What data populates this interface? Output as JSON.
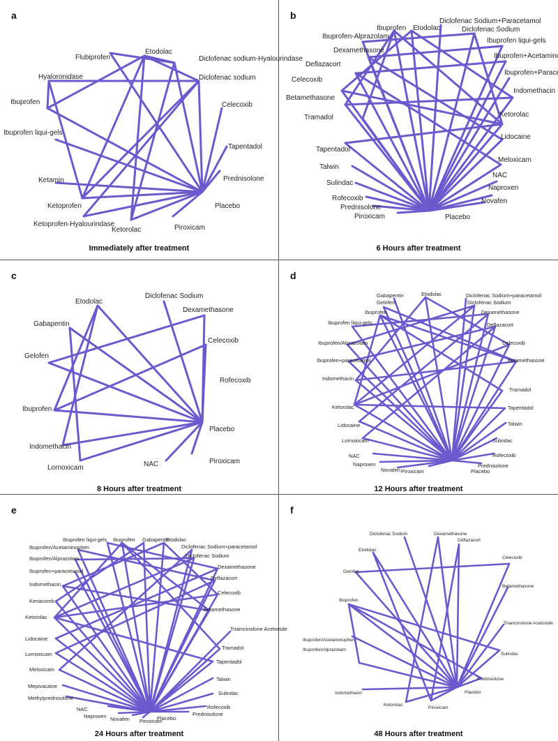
{
  "colors": {
    "edge": "#6a5acd",
    "divider": "#555555"
  },
  "panels": [
    {
      "letter": "a",
      "caption": "Immediately after treatment",
      "nodes": [
        "Flubiprofen",
        "Etodolac",
        "Diclofenac sodium-Hyalourindase",
        "Hyaloronidase",
        "Diclofenac sodium",
        "Ibuprofen",
        "Celecoxib",
        "Ibuprofen liqui-gels",
        "Tapentadol",
        "Ketamin",
        "Prednisolone",
        "Ketoprofen",
        "Placebo",
        "Ketoprofen-Hyalourindase",
        "Ketorolac",
        "Piroxicam"
      ],
      "edges": [
        [
          0,
          2
        ],
        [
          1,
          2
        ],
        [
          1,
          4
        ],
        [
          2,
          14
        ],
        [
          2,
          12
        ],
        [
          3,
          4
        ],
        [
          3,
          11
        ],
        [
          3,
          5
        ],
        [
          4,
          11
        ],
        [
          4,
          12
        ],
        [
          4,
          13
        ],
        [
          5,
          12
        ],
        [
          6,
          12
        ],
        [
          7,
          12
        ],
        [
          8,
          12
        ],
        [
          9,
          12
        ],
        [
          10,
          12
        ],
        [
          11,
          12
        ],
        [
          11,
          1
        ],
        [
          13,
          12
        ],
        [
          14,
          12
        ],
        [
          15,
          12
        ],
        [
          1,
          14
        ],
        [
          0,
          12
        ],
        [
          5,
          1
        ]
      ]
    },
    {
      "letter": "b",
      "caption": "6 Hours after treatment",
      "nodes": [
        "Ibuprofen",
        "Etodolac",
        "Diclofenac Sodium+Paracetamol",
        "Ibuprofen-Alprazolam",
        "Diclofenac Sodium",
        "Dexamethasone",
        "Ibuprofen liqui-gels",
        "Deflazacort",
        "Ibuprofen+Acetaminofen",
        "Celecoxib",
        "Ibuprofen+Paracetamol",
        "Betamethasone",
        "Indomethacin",
        "Tramadol",
        "Ketorolac",
        "Tapentadol",
        "Lidocaine",
        "Talwin",
        "Meloxicam",
        "Sulindac",
        "NAC",
        "Rofecoxib",
        "Naproxen",
        "Prednisolone",
        "Novafen",
        "Piroxicam",
        "Placebo"
      ],
      "edges": [
        [
          0,
          26
        ],
        [
          1,
          26
        ],
        [
          2,
          26
        ],
        [
          3,
          26
        ],
        [
          4,
          26
        ],
        [
          5,
          26
        ],
        [
          6,
          26
        ],
        [
          7,
          26
        ],
        [
          8,
          26
        ],
        [
          9,
          26
        ],
        [
          10,
          26
        ],
        [
          11,
          26
        ],
        [
          12,
          26
        ],
        [
          13,
          26
        ],
        [
          14,
          26
        ],
        [
          15,
          26
        ],
        [
          16,
          26
        ],
        [
          17,
          26
        ],
        [
          18,
          26
        ],
        [
          19,
          26
        ],
        [
          20,
          26
        ],
        [
          21,
          26
        ],
        [
          22,
          26
        ],
        [
          23,
          26
        ],
        [
          24,
          26
        ],
        [
          25,
          26
        ],
        [
          0,
          14
        ],
        [
          1,
          12
        ],
        [
          4,
          14
        ],
        [
          0,
          11
        ],
        [
          12,
          11
        ],
        [
          3,
          4
        ],
        [
          5,
          16
        ],
        [
          7,
          18
        ],
        [
          9,
          14
        ],
        [
          1,
          9
        ],
        [
          0,
          13
        ],
        [
          14,
          15
        ],
        [
          6,
          5
        ],
        [
          8,
          7
        ]
      ]
    },
    {
      "letter": "c",
      "caption": "8 Hours after treatment",
      "nodes": [
        "Etodolac",
        "Diclofenac Sodium",
        "Dexamethasone",
        "Gabapentin",
        "Celecoxib",
        "Gelofen",
        "Rofecoxib",
        "Ibuprofen",
        "Placebo",
        "Indomethacin",
        "Piroxicam",
        "Lornoxicam",
        "NAC"
      ],
      "edges": [
        [
          0,
          7
        ],
        [
          0,
          8
        ],
        [
          1,
          8
        ],
        [
          2,
          8
        ],
        [
          3,
          8
        ],
        [
          4,
          8
        ],
        [
          5,
          8
        ],
        [
          6,
          8
        ],
        [
          7,
          8
        ],
        [
          9,
          8
        ],
        [
          10,
          8
        ],
        [
          11,
          8
        ],
        [
          12,
          8
        ],
        [
          5,
          2
        ],
        [
          7,
          4
        ],
        [
          3,
          11
        ],
        [
          0,
          9
        ]
      ]
    },
    {
      "letter": "d",
      "caption": "12 Hours after treatment",
      "nodes": [
        "Gabapentin",
        "Etodolac",
        "Diclofenac Sodium+paracetamol",
        "Gelofen",
        "Diclofenac Sodium",
        "Ibuprofen",
        "Dexamethasone",
        "Ibuprofen liqui-gels",
        "Deflazacort",
        "Ibuprofen/Alprazolam",
        "Celecoxib",
        "Ibuprofen+paracetamol",
        "Betamethasone",
        "Indomethacin",
        "Tramadol",
        "Ketorolac",
        "Tapentadol",
        "Lidocaine",
        "Talwin",
        "Lornoxicam",
        "Sulindac",
        "NAC",
        "Rofecoxib",
        "Naproxen",
        "Prednisolone",
        "Novafen",
        "Piroxicam",
        "Placebo"
      ],
      "edges": [
        [
          0,
          27
        ],
        [
          1,
          27
        ],
        [
          2,
          27
        ],
        [
          3,
          27
        ],
        [
          4,
          27
        ],
        [
          5,
          27
        ],
        [
          6,
          27
        ],
        [
          7,
          27
        ],
        [
          8,
          27
        ],
        [
          9,
          27
        ],
        [
          10,
          27
        ],
        [
          11,
          27
        ],
        [
          12,
          27
        ],
        [
          13,
          27
        ],
        [
          14,
          27
        ],
        [
          15,
          27
        ],
        [
          16,
          27
        ],
        [
          17,
          27
        ],
        [
          18,
          27
        ],
        [
          19,
          27
        ],
        [
          20,
          27
        ],
        [
          21,
          27
        ],
        [
          22,
          27
        ],
        [
          23,
          27
        ],
        [
          24,
          27
        ],
        [
          25,
          27
        ],
        [
          26,
          27
        ],
        [
          5,
          15
        ],
        [
          1,
          13
        ],
        [
          4,
          15
        ],
        [
          5,
          12
        ],
        [
          13,
          12
        ],
        [
          9,
          4
        ],
        [
          6,
          17
        ],
        [
          8,
          19
        ],
        [
          10,
          15
        ],
        [
          1,
          10
        ],
        [
          5,
          14
        ],
        [
          15,
          16
        ],
        [
          7,
          6
        ],
        [
          11,
          8
        ],
        [
          3,
          12
        ]
      ]
    },
    {
      "letter": "e",
      "caption": "24 Hours after treatment",
      "nodes": [
        "Ibuprofen liqui-gels",
        "Ibuprofen",
        "Gabapentin",
        "Etodolac",
        "Ibuprofen/Acetaminophen",
        "Diclofenac Sodium+paracetamol",
        "Ibuprofen/Alprazolam",
        "Diclofenac Sodium",
        "Ibuprofen+paracetamol",
        "Dexamethasone",
        "Indomethacin",
        "Deflazacort",
        "Kenacomb",
        "Celecoxib",
        "Betamethasone",
        "Ketorolac",
        "Triamcinolone Acetonide",
        "Lidocaine",
        "Tramadol",
        "Lornoxicam",
        "Tapentadol",
        "Meloxicam",
        "Talwin",
        "Mepivacaine",
        "Sulindac",
        "Methylprednisolone",
        "Rofecoxib",
        "NAC",
        "Prednisolone",
        "Naproxen",
        "Placebo",
        "Novafen",
        "Piroxicam"
      ],
      "edges": [
        [
          0,
          30
        ],
        [
          1,
          30
        ],
        [
          2,
          30
        ],
        [
          3,
          30
        ],
        [
          4,
          30
        ],
        [
          5,
          30
        ],
        [
          6,
          30
        ],
        [
          7,
          30
        ],
        [
          8,
          30
        ],
        [
          9,
          30
        ],
        [
          10,
          30
        ],
        [
          11,
          30
        ],
        [
          12,
          30
        ],
        [
          13,
          30
        ],
        [
          14,
          30
        ],
        [
          15,
          30
        ],
        [
          16,
          30
        ],
        [
          17,
          30
        ],
        [
          18,
          30
        ],
        [
          19,
          30
        ],
        [
          20,
          30
        ],
        [
          21,
          30
        ],
        [
          22,
          30
        ],
        [
          23,
          30
        ],
        [
          24,
          30
        ],
        [
          25,
          30
        ],
        [
          26,
          30
        ],
        [
          27,
          30
        ],
        [
          28,
          30
        ],
        [
          29,
          30
        ],
        [
          31,
          30
        ],
        [
          32,
          30
        ],
        [
          1,
          15
        ],
        [
          3,
          10
        ],
        [
          7,
          15
        ],
        [
          1,
          14
        ],
        [
          10,
          14
        ],
        [
          6,
          7
        ],
        [
          9,
          17
        ],
        [
          11,
          19
        ],
        [
          13,
          15
        ],
        [
          3,
          13
        ],
        [
          1,
          18
        ],
        [
          15,
          20
        ],
        [
          0,
          9
        ],
        [
          4,
          11
        ],
        [
          2,
          12
        ],
        [
          5,
          21
        ]
      ]
    },
    {
      "letter": "f",
      "caption": "48 Hours after treatment",
      "nodes": [
        "Diclofenac Sodium",
        "Dexamethasone",
        "Deflazacort",
        "Etodolac",
        "Celecoxib",
        "Gelofen",
        "Betamethasone",
        "Ibuprofen",
        "Triamcinolone Acetonide",
        "Ibuprofen/Acetaminophen",
        "Sulindac",
        "Ibuprofen/Alprazolam",
        "Prednisolone",
        "Indomethacin",
        "Placebo",
        "Ketorolac",
        "Piroxicam"
      ],
      "edges": [
        [
          0,
          14
        ],
        [
          1,
          14
        ],
        [
          2,
          14
        ],
        [
          3,
          14
        ],
        [
          4,
          14
        ],
        [
          5,
          14
        ],
        [
          6,
          14
        ],
        [
          7,
          14
        ],
        [
          8,
          14
        ],
        [
          9,
          14
        ],
        [
          10,
          14
        ],
        [
          11,
          14
        ],
        [
          12,
          14
        ],
        [
          13,
          14
        ],
        [
          15,
          14
        ],
        [
          16,
          14
        ],
        [
          7,
          10
        ],
        [
          5,
          4
        ],
        [
          7,
          11
        ],
        [
          1,
          15
        ],
        [
          2,
          16
        ],
        [
          3,
          16
        ],
        [
          7,
          12
        ]
      ]
    }
  ]
}
